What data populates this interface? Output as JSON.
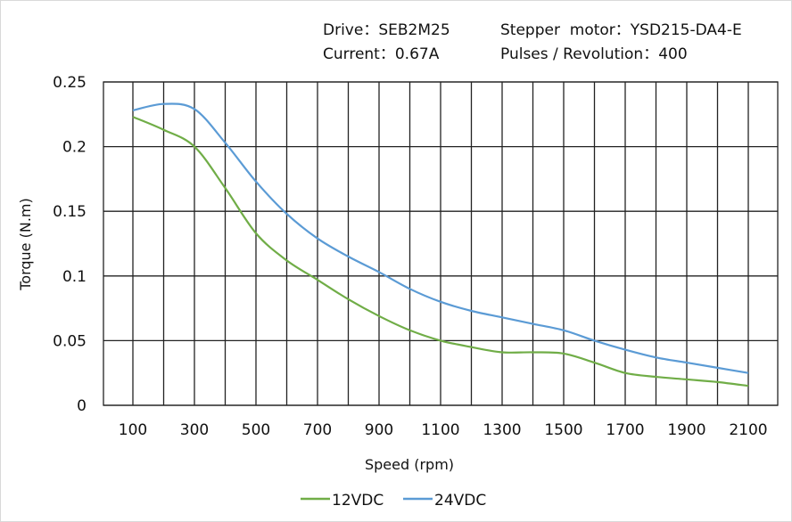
{
  "info": {
    "drive": "Drive：SEB2M25",
    "motor": "Stepper  motor：YSD215-DA4-E",
    "current": "Current：0.67A",
    "pulses": "Pulses / Revolution：400"
  },
  "chart_data": {
    "type": "line",
    "xlabel": "Speed  (rpm)",
    "ylabel": "Torque (N.m)",
    "xlim": [
      0,
      2200
    ],
    "ylim": [
      0,
      0.25
    ],
    "xticks": [
      100,
      300,
      500,
      700,
      900,
      1100,
      1300,
      1500,
      1700,
      1900,
      2100
    ],
    "yticks": [
      0,
      0.05,
      0.1,
      0.15,
      0.2,
      0.25
    ],
    "ytick_labels": [
      "0",
      "0.05",
      "0.1",
      "0.15",
      "0.2",
      "0.25"
    ],
    "grid": true,
    "legend": "bottom",
    "x": [
      100,
      200,
      300,
      400,
      500,
      600,
      700,
      800,
      900,
      1000,
      1100,
      1200,
      1300,
      1400,
      1500,
      1600,
      1700,
      1800,
      1900,
      2000,
      2100
    ],
    "series": [
      {
        "name": "12VDC",
        "color": "#70ad47",
        "values": [
          0.223,
          0.213,
          0.2,
          0.168,
          0.133,
          0.112,
          0.097,
          0.082,
          0.069,
          0.058,
          0.05,
          0.045,
          0.041,
          0.041,
          0.04,
          0.033,
          0.025,
          0.022,
          0.02,
          0.018,
          0.015
        ]
      },
      {
        "name": "24VDC",
        "color": "#5b9bd5",
        "values": [
          0.228,
          0.233,
          0.229,
          0.203,
          0.173,
          0.148,
          0.129,
          0.115,
          0.103,
          0.09,
          0.08,
          0.073,
          0.068,
          0.063,
          0.058,
          0.05,
          0.043,
          0.037,
          0.033,
          0.029,
          0.025
        ]
      }
    ]
  }
}
